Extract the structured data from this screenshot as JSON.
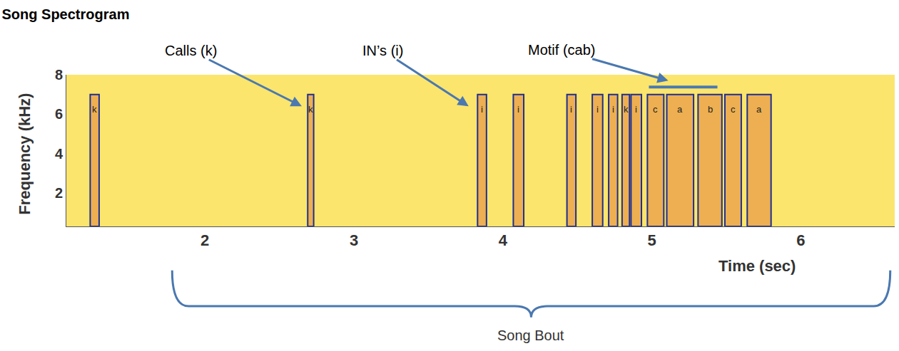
{
  "chart_data": {
    "type": "spectrogram",
    "title": "Song Spectrogram",
    "x_label": "Time (sec)",
    "y_label": "Frequency (kHz)",
    "xlim": [
      1.07,
      6.63
    ],
    "ylim": [
      0.3,
      8
    ],
    "xticks": [
      2,
      3,
      4,
      5,
      6
    ],
    "yticks": [
      2,
      4,
      6,
      8
    ],
    "color": "#1f2f8f",
    "segments": [
      {
        "label": "k",
        "start": 1.23,
        "end": 1.29,
        "low": 0.3,
        "high": 7
      },
      {
        "label": "k",
        "start": 2.69,
        "end": 2.73,
        "low": 0.3,
        "high": 7
      },
      {
        "label": "i",
        "start": 3.83,
        "end": 3.89,
        "low": 0.3,
        "high": 7
      },
      {
        "label": "i",
        "start": 4.07,
        "end": 4.14,
        "low": 0.3,
        "high": 7
      },
      {
        "label": "i",
        "start": 4.43,
        "end": 4.49,
        "low": 0.3,
        "high": 7
      },
      {
        "label": "i",
        "start": 4.6,
        "end": 4.67,
        "low": 0.3,
        "high": 7
      },
      {
        "label": "i",
        "start": 4.71,
        "end": 4.77,
        "low": 0.3,
        "high": 7
      },
      {
        "label": "k",
        "start": 4.8,
        "end": 4.85,
        "low": 0.3,
        "high": 7
      },
      {
        "label": "i",
        "start": 4.86,
        "end": 4.93,
        "low": 0.3,
        "high": 7
      },
      {
        "label": "c",
        "start": 4.97,
        "end": 5.08,
        "low": 0.3,
        "high": 7
      },
      {
        "label": "a",
        "start": 5.1,
        "end": 5.28,
        "low": 0.3,
        "high": 7
      },
      {
        "label": "b",
        "start": 5.31,
        "end": 5.47,
        "low": 0.3,
        "high": 7
      },
      {
        "label": "c",
        "start": 5.49,
        "end": 5.6,
        "low": 0.3,
        "high": 7
      },
      {
        "label": "a",
        "start": 5.64,
        "end": 5.8,
        "low": 0.3,
        "high": 7
      }
    ],
    "motif": {
      "start": 4.98,
      "end": 5.44,
      "frequency": 7.38
    },
    "annotations": [
      {
        "text": "Calls (k)",
        "x": 2.65,
        "y": 6.4
      },
      {
        "text": "IN’s (i)",
        "x": 3.77,
        "y": 6.4
      },
      {
        "text": "Motif (cab)",
        "x": 5.11,
        "y": 7.7
      }
    ],
    "bracket": {
      "text": "Song Bout",
      "start": 1.78,
      "end": 6.6
    }
  }
}
